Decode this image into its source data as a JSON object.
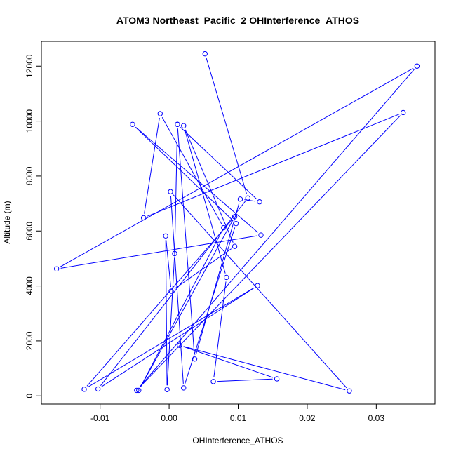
{
  "chart_data": {
    "type": "line",
    "title": "ATOM3 Northeast_Pacific_2 OHInterference_ATHOS",
    "xlabel": "OHInterference_ATHOS",
    "ylabel": "Altitude (m)",
    "xlim": [
      -0.0185,
      0.0385
    ],
    "ylim": [
      -300,
      12900
    ],
    "x_ticks": [
      -0.01,
      0.0,
      0.01,
      0.02,
      0.03
    ],
    "x_tick_labels": [
      "-0.01",
      "0.00",
      "0.01",
      "0.02",
      "0.03"
    ],
    "y_ticks": [
      0,
      2000,
      4000,
      6000,
      8000,
      10000,
      12000
    ],
    "y_tick_labels": [
      "0",
      "2000",
      "4000",
      "6000",
      "8000",
      "10000",
      "12000"
    ],
    "grid": false,
    "colors": {
      "series": "#0000ff",
      "axis": "#000000"
    },
    "series": [
      {
        "points": [
          [
            0.0052,
            12450
          ],
          [
            0.0114,
            7200
          ],
          [
            -0.0103,
            250
          ],
          [
            0.0128,
            4010
          ],
          [
            -0.0123,
            240
          ],
          [
            0.0095,
            6520
          ],
          [
            -0.0044,
            200
          ],
          [
            0.0079,
            6120
          ],
          [
            -0.0013,
            10270
          ],
          [
            -0.0037,
            6480
          ],
          [
            0.0339,
            10310
          ],
          [
            -0.0047,
            200
          ],
          [
            0.0359,
            12000
          ],
          [
            -0.0163,
            4620
          ],
          [
            0.0133,
            5850
          ],
          [
            -0.0053,
            9880
          ],
          [
            0.0097,
            6270
          ],
          [
            0.0021,
            290
          ],
          [
            0.0002,
            7430
          ],
          [
            0.0261,
            180
          ],
          [
            0.0015,
            1840
          ],
          [
            0.0156,
            620
          ],
          [
            0.0064,
            520
          ],
          [
            0.0083,
            4310
          ],
          [
            0.0021,
            9830
          ],
          [
            0.0095,
            5440
          ],
          [
            0.0003,
            3810
          ],
          [
            -0.0005,
            5820
          ],
          [
            -0.0003,
            230
          ],
          [
            0.0008,
            5180
          ],
          [
            0.0012,
            9880
          ],
          [
            0.0037,
            1340
          ],
          [
            0.0103,
            7160
          ],
          [
            0.0131,
            7060
          ],
          [
            0.0012,
            9880
          ]
        ]
      }
    ]
  }
}
